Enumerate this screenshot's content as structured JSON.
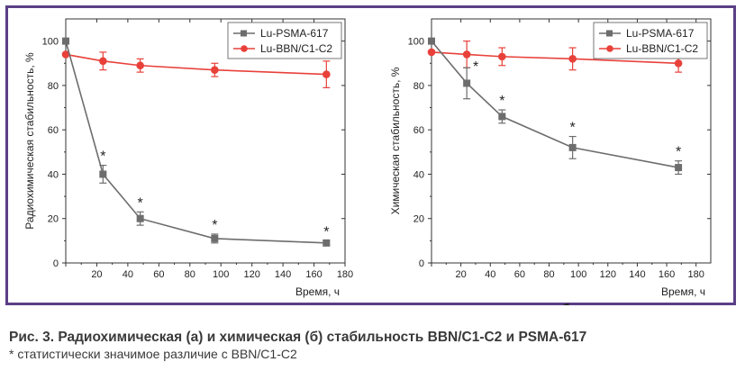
{
  "figure": {
    "caption_title": "Рис. 3. Радиохимическая (а) и химическая (б) стабильность BBN/C1-C2 и PSMA-617",
    "caption_note": "* статистически значимое различие с BBN/C1-C2"
  },
  "colors": {
    "frame": "#5b3f86",
    "gray_series": "#6d6d6d",
    "red_series": "#e8413a"
  },
  "chart_data": [
    {
      "type": "line",
      "panel_label": "а",
      "xlabel": "Время, ч",
      "ylabel": "Радиохимическая стабильность, %",
      "xlim": [
        0,
        180
      ],
      "ylim": [
        0,
        110
      ],
      "xticks": [
        0,
        20,
        40,
        60,
        80,
        100,
        120,
        140,
        160,
        180
      ],
      "xtick_labels": [
        "20",
        "40",
        "60",
        "80",
        "100",
        "120",
        "140",
        "160",
        "180"
      ],
      "yticks": [
        0,
        20,
        40,
        60,
        80,
        100
      ],
      "legend_position": "top-right",
      "grid": false,
      "series": [
        {
          "name": "Lu-PSMA-617",
          "marker": "square",
          "color": "#6d6d6d",
          "x": [
            0,
            24,
            48,
            96,
            168
          ],
          "y": [
            100,
            40,
            20,
            11,
            9
          ],
          "err": [
            0,
            4,
            3,
            2,
            1
          ],
          "significant": [
            false,
            true,
            true,
            true,
            true
          ]
        },
        {
          "name": "Lu-BBN/C1-C2",
          "marker": "circle",
          "color": "#e8413a",
          "x": [
            0,
            24,
            48,
            96,
            168
          ],
          "y": [
            94,
            91,
            89,
            87,
            85
          ],
          "err": [
            0,
            4,
            3,
            3,
            6
          ],
          "significant": [
            false,
            false,
            false,
            false,
            false
          ]
        }
      ]
    },
    {
      "type": "line",
      "panel_label": "б",
      "xlabel": "Время, ч",
      "ylabel": "Химическая стабильность, %",
      "xlim": [
        0,
        190
      ],
      "ylim": [
        0,
        110
      ],
      "xticks": [
        0,
        20,
        40,
        60,
        80,
        100,
        120,
        140,
        160,
        180
      ],
      "xtick_labels": [
        "20",
        "40",
        "60",
        "80",
        "100",
        "120",
        "140",
        "160",
        "180"
      ],
      "yticks": [
        0,
        20,
        40,
        60,
        80,
        100
      ],
      "legend_position": "top-right",
      "grid": false,
      "series": [
        {
          "name": "Lu-PSMA-617",
          "marker": "square",
          "color": "#6d6d6d",
          "x": [
            0,
            24,
            48,
            96,
            168
          ],
          "y": [
            100,
            81,
            66,
            52,
            43
          ],
          "err": [
            0,
            7,
            3,
            5,
            3
          ],
          "significant": [
            false,
            true,
            true,
            true,
            true
          ]
        },
        {
          "name": "Lu-BBN/C1-C2",
          "marker": "circle",
          "color": "#e8413a",
          "x": [
            0,
            24,
            48,
            96,
            168
          ],
          "y": [
            95,
            94,
            93,
            92,
            90
          ],
          "err": [
            0,
            6,
            4,
            5,
            4
          ],
          "significant": [
            false,
            false,
            false,
            false,
            false
          ]
        }
      ]
    }
  ]
}
